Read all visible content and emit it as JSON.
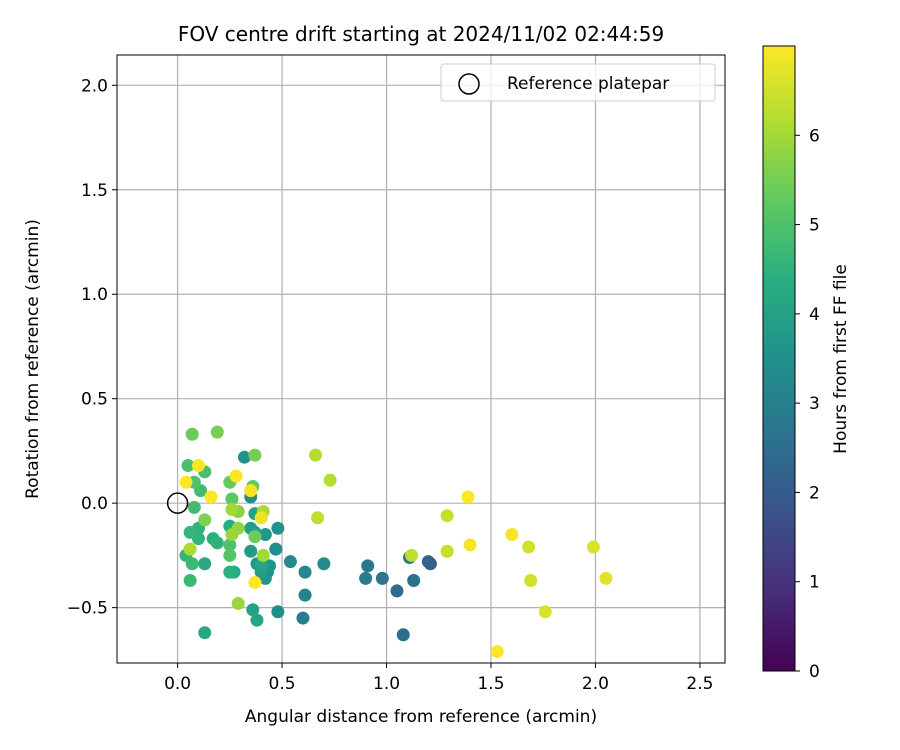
{
  "chart_data": {
    "type": "scatter",
    "title": "FOV centre drift starting at 2024/11/02 02:44:59",
    "xlabel": "Angular distance from reference (arcmin)",
    "ylabel": "Rotation from reference (arcmin)",
    "xlim": [
      -0.29,
      2.62
    ],
    "ylim": [
      -0.765,
      2.145
    ],
    "xticks": [
      0.0,
      0.5,
      1.0,
      1.5,
      2.0,
      2.5
    ],
    "xtick_labels": [
      "0.0",
      "0.5",
      "1.0",
      "1.5",
      "2.0",
      "2.5"
    ],
    "yticks": [
      -0.5,
      0.0,
      0.5,
      1.0,
      1.5,
      2.0
    ],
    "ytick_labels": [
      "−0.5",
      "0.0",
      "0.5",
      "1.0",
      "1.5",
      "2.0"
    ],
    "grid": true,
    "legend": {
      "placement": "upper right",
      "entries": [
        {
          "label": "Reference platepar",
          "marker": "open-circle",
          "color": "#000000"
        }
      ]
    },
    "reference_point": {
      "x": 0.0,
      "y": 0.0
    },
    "colorbar": {
      "label": "Hours from first FF file",
      "colormap": "viridis",
      "range": [
        0,
        7.0
      ],
      "ticks": [
        0,
        1,
        2,
        3,
        4,
        5,
        6
      ],
      "tick_labels": [
        "0",
        "1",
        "2",
        "3",
        "4",
        "5",
        "6"
      ]
    },
    "points": [
      {
        "x": 1.21,
        "y": -0.29,
        "hours": 2.1
      },
      {
        "x": 1.2,
        "y": -0.28,
        "hours": 2.2
      },
      {
        "x": 1.05,
        "y": -0.42,
        "hours": 2.4
      },
      {
        "x": 1.08,
        "y": -0.63,
        "hours": 2.5
      },
      {
        "x": 1.13,
        "y": -0.37,
        "hours": 2.6
      },
      {
        "x": 0.98,
        "y": -0.36,
        "hours": 2.7
      },
      {
        "x": 0.91,
        "y": -0.3,
        "hours": 2.8
      },
      {
        "x": 0.9,
        "y": -0.36,
        "hours": 2.9
      },
      {
        "x": 1.11,
        "y": -0.26,
        "hours": 2.9
      },
      {
        "x": 0.6,
        "y": -0.55,
        "hours": 3.0
      },
      {
        "x": 0.61,
        "y": -0.44,
        "hours": 3.1
      },
      {
        "x": 0.61,
        "y": -0.33,
        "hours": 3.2
      },
      {
        "x": 0.54,
        "y": -0.28,
        "hours": 3.3
      },
      {
        "x": 0.7,
        "y": -0.29,
        "hours": 3.3
      },
      {
        "x": 0.48,
        "y": -0.52,
        "hours": 3.4
      },
      {
        "x": 0.47,
        "y": -0.22,
        "hours": 3.4
      },
      {
        "x": 0.48,
        "y": -0.12,
        "hours": 3.5
      },
      {
        "x": 0.43,
        "y": -0.33,
        "hours": 3.5
      },
      {
        "x": 0.42,
        "y": -0.36,
        "hours": 3.6
      },
      {
        "x": 0.44,
        "y": -0.3,
        "hours": 3.6
      },
      {
        "x": 0.42,
        "y": -0.15,
        "hours": 3.7
      },
      {
        "x": 0.38,
        "y": -0.29,
        "hours": 3.7
      },
      {
        "x": 0.4,
        "y": -0.33,
        "hours": 3.8
      },
      {
        "x": 0.35,
        "y": -0.23,
        "hours": 3.8
      },
      {
        "x": 0.35,
        "y": -0.12,
        "hours": 3.9
      },
      {
        "x": 0.37,
        "y": -0.14,
        "hours": 3.9
      },
      {
        "x": 0.37,
        "y": -0.05,
        "hours": 4.0
      },
      {
        "x": 0.35,
        "y": 0.03,
        "hours": 3.3
      },
      {
        "x": 0.32,
        "y": 0.22,
        "hours": 3.5
      },
      {
        "x": 0.36,
        "y": -0.51,
        "hours": 4.0
      },
      {
        "x": 0.38,
        "y": -0.56,
        "hours": 4.1
      },
      {
        "x": 0.4,
        "y": -0.3,
        "hours": 4.1
      },
      {
        "x": 0.13,
        "y": -0.62,
        "hours": 4.2
      },
      {
        "x": 0.13,
        "y": -0.29,
        "hours": 4.2
      },
      {
        "x": 0.25,
        "y": -0.11,
        "hours": 4.3
      },
      {
        "x": 0.27,
        "y": -0.33,
        "hours": 4.3
      },
      {
        "x": 0.25,
        "y": -0.33,
        "hours": 4.4
      },
      {
        "x": 0.17,
        "y": -0.17,
        "hours": 4.4
      },
      {
        "x": 0.19,
        "y": -0.19,
        "hours": 4.5
      },
      {
        "x": 0.1,
        "y": -0.17,
        "hours": 4.5
      },
      {
        "x": 0.1,
        "y": -0.12,
        "hours": 4.5
      },
      {
        "x": 0.06,
        "y": -0.14,
        "hours": 4.6
      },
      {
        "x": 0.04,
        "y": -0.25,
        "hours": 4.6
      },
      {
        "x": 0.06,
        "y": -0.37,
        "hours": 4.7
      },
      {
        "x": 0.07,
        "y": -0.29,
        "hours": 4.7
      },
      {
        "x": 0.08,
        "y": -0.02,
        "hours": 4.8
      },
      {
        "x": 0.11,
        "y": 0.06,
        "hours": 4.8
      },
      {
        "x": 0.13,
        "y": 0.15,
        "hours": 4.9
      },
      {
        "x": 0.05,
        "y": 0.18,
        "hours": 4.9
      },
      {
        "x": 0.08,
        "y": 0.1,
        "hours": 5.0
      },
      {
        "x": 0.25,
        "y": -0.2,
        "hours": 5.0
      },
      {
        "x": 0.25,
        "y": -0.25,
        "hours": 5.1
      },
      {
        "x": 0.26,
        "y": 0.02,
        "hours": 5.2
      },
      {
        "x": 0.25,
        "y": 0.1,
        "hours": 5.3
      },
      {
        "x": 0.36,
        "y": 0.08,
        "hours": 5.3
      },
      {
        "x": 0.37,
        "y": -0.16,
        "hours": 5.4
      },
      {
        "x": 0.07,
        "y": 0.33,
        "hours": 5.4
      },
      {
        "x": 0.19,
        "y": 0.34,
        "hours": 5.5
      },
      {
        "x": 0.37,
        "y": 0.23,
        "hours": 5.5
      },
      {
        "x": 0.13,
        "y": -0.08,
        "hours": 5.6
      },
      {
        "x": 0.29,
        "y": -0.04,
        "hours": 5.7
      },
      {
        "x": 0.29,
        "y": -0.12,
        "hours": 5.8
      },
      {
        "x": 0.29,
        "y": -0.48,
        "hours": 5.9
      },
      {
        "x": 0.26,
        "y": -0.15,
        "hours": 5.9
      },
      {
        "x": 0.26,
        "y": -0.03,
        "hours": 6.0
      },
      {
        "x": 0.41,
        "y": -0.25,
        "hours": 6.0
      },
      {
        "x": 0.41,
        "y": -0.04,
        "hours": 6.1
      },
      {
        "x": 0.06,
        "y": -0.22,
        "hours": 6.1
      },
      {
        "x": 0.66,
        "y": 0.23,
        "hours": 6.2
      },
      {
        "x": 0.73,
        "y": 0.11,
        "hours": 6.2
      },
      {
        "x": 0.67,
        "y": -0.07,
        "hours": 6.3
      },
      {
        "x": 1.12,
        "y": -0.25,
        "hours": 6.3
      },
      {
        "x": 1.29,
        "y": -0.23,
        "hours": 6.4
      },
      {
        "x": 1.29,
        "y": -0.06,
        "hours": 6.4
      },
      {
        "x": 1.68,
        "y": -0.21,
        "hours": 6.5
      },
      {
        "x": 1.69,
        "y": -0.37,
        "hours": 6.5
      },
      {
        "x": 1.76,
        "y": -0.52,
        "hours": 6.6
      },
      {
        "x": 1.99,
        "y": -0.21,
        "hours": 6.6
      },
      {
        "x": 2.05,
        "y": -0.36,
        "hours": 6.7
      },
      {
        "x": 0.4,
        "y": -0.07,
        "hours": 6.8
      },
      {
        "x": 0.35,
        "y": 0.06,
        "hours": 6.9
      },
      {
        "x": 0.28,
        "y": 0.13,
        "hours": 7.0
      },
      {
        "x": 0.16,
        "y": 0.03,
        "hours": 7.0
      },
      {
        "x": 0.1,
        "y": 0.18,
        "hours": 7.0
      },
      {
        "x": 0.04,
        "y": 0.1,
        "hours": 7.0
      },
      {
        "x": 0.37,
        "y": -0.38,
        "hours": 7.0
      },
      {
        "x": 1.39,
        "y": 0.03,
        "hours": 7.0
      },
      {
        "x": 1.4,
        "y": -0.2,
        "hours": 6.9
      },
      {
        "x": 1.6,
        "y": -0.15,
        "hours": 6.9
      },
      {
        "x": 1.53,
        "y": -0.71,
        "hours": 7.0
      }
    ]
  },
  "colors": {
    "axis": "#000000",
    "grid": "#b0b0b0",
    "reference_marker": "#000000"
  }
}
